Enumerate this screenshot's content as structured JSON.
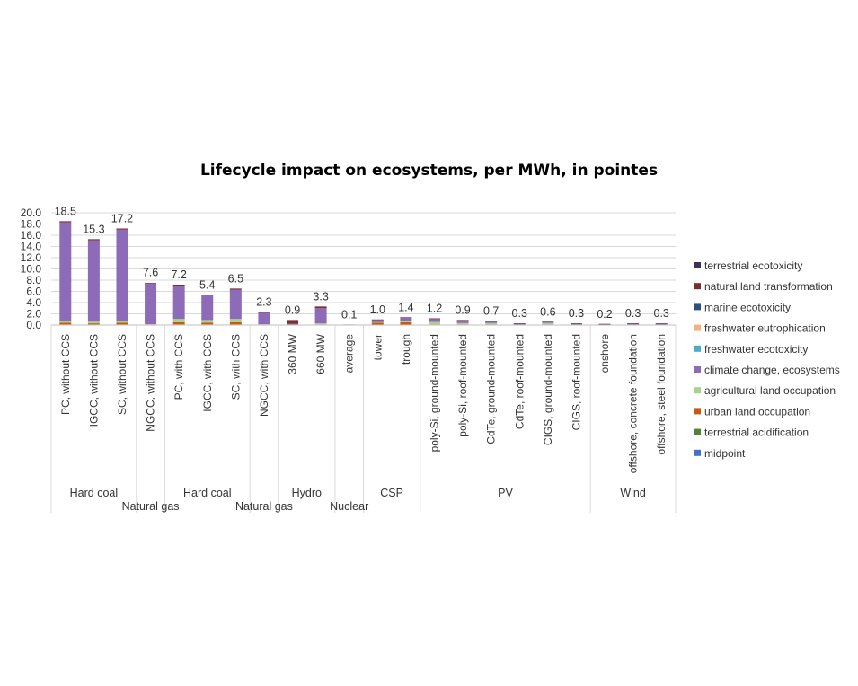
{
  "chart_data": {
    "type": "bar",
    "stacked": true,
    "title": "Lifecycle impact on ecosystems, per MWh, in pointes",
    "xlabel": "",
    "ylabel": "",
    "ylim": [
      0,
      20
    ],
    "yticks": [
      "0.0",
      "2.0",
      "4.0",
      "6.0",
      "8.0",
      "10.0",
      "12.0",
      "14.0",
      "16.0",
      "18.0",
      "20.0"
    ],
    "legend_position": "right",
    "categories": [
      "PC, without CCS",
      "IGCC, without CCS",
      "SC, without CCS",
      "NGCC, without CCS",
      "PC, with CCS",
      "IGCC, with CCS",
      "SC, with CCS",
      "NGCC, with CCS",
      "360 MW",
      "660 MW",
      "average",
      "tower",
      "trough",
      "poly-Si, ground-mounted",
      "poly-Si, roof-mounted",
      "CdTe, ground-mounted",
      "CdTe, roof-mounted",
      "CIGS, ground-mounted",
      "CIGS, roof-mounted",
      "onshore",
      "offshore, concrete foundation",
      "offshore, steel foundation"
    ],
    "totals": [
      18.5,
      15.3,
      17.2,
      7.6,
      7.2,
      5.4,
      6.5,
      2.3,
      0.9,
      3.3,
      0.1,
      1.0,
      1.4,
      1.2,
      0.9,
      0.7,
      0.3,
      0.6,
      0.3,
      0.2,
      0.3,
      0.3
    ],
    "total_labels": [
      "18.5",
      "15.3",
      "17.2",
      "7.6",
      "7.2",
      "5.4",
      "6.5",
      "2.3",
      "0.9",
      "3.3",
      "0.1",
      "1.0",
      "1.4",
      "1.2",
      "0.9",
      "0.7",
      "0.3",
      "0.6",
      "0.3",
      "0.2",
      "0.3",
      "0.3"
    ],
    "groups": [
      {
        "label": "Hard coal",
        "start": 0,
        "end": 2,
        "row": 1
      },
      {
        "label": "Natural gas",
        "start": 3,
        "end": 3,
        "row": 2
      },
      {
        "label": "Hard coal",
        "start": 4,
        "end": 6,
        "row": 1
      },
      {
        "label": "Natural gas",
        "start": 7,
        "end": 7,
        "row": 2
      },
      {
        "label": "Hydro",
        "start": 8,
        "end": 9,
        "row": 1
      },
      {
        "label": "Nuclear",
        "start": 10,
        "end": 10,
        "row": 2
      },
      {
        "label": "CSP",
        "start": 11,
        "end": 12,
        "row": 1
      },
      {
        "label": "PV",
        "start": 13,
        "end": 18,
        "row": 1
      },
      {
        "label": "Wind",
        "start": 19,
        "end": 21,
        "row": 1
      }
    ],
    "series": [
      {
        "name": "midpoint",
        "color": "#4472c4",
        "values": [
          0,
          0,
          0,
          0,
          0,
          0,
          0,
          0,
          0,
          0,
          0,
          0,
          0,
          0,
          0,
          0,
          0,
          0,
          0,
          0,
          0,
          0
        ]
      },
      {
        "name": "terrestrial acidification",
        "color": "#548235",
        "values": [
          0.1,
          0.1,
          0.1,
          0,
          0.1,
          0.1,
          0.1,
          0,
          0,
          0,
          0,
          0,
          0,
          0,
          0,
          0,
          0,
          0,
          0,
          0,
          0,
          0
        ]
      },
      {
        "name": "urban land occupation",
        "color": "#c55a11",
        "values": [
          0.3,
          0.2,
          0.3,
          0.05,
          0.4,
          0.3,
          0.4,
          0.05,
          0.05,
          0.1,
          0,
          0.4,
          0.5,
          0.05,
          0.05,
          0.05,
          0.02,
          0.05,
          0.02,
          0.02,
          0.02,
          0.02
        ]
      },
      {
        "name": "agricultural land occupation",
        "color": "#a9d18e",
        "values": [
          0.4,
          0.3,
          0.4,
          0.1,
          0.6,
          0.5,
          0.6,
          0.1,
          0,
          0.2,
          0,
          0.1,
          0.2,
          0.5,
          0.3,
          0.3,
          0.05,
          0.3,
          0.05,
          0.03,
          0.05,
          0.05
        ]
      },
      {
        "name": "climate change, ecosystems",
        "color": "#8e6bb8",
        "values": [
          17.5,
          14.5,
          16.2,
          7.3,
          5.9,
          4.4,
          5.2,
          2.1,
          0.15,
          2.7,
          0.1,
          0.45,
          0.6,
          0.6,
          0.5,
          0.3,
          0.2,
          0.2,
          0.2,
          0.13,
          0.2,
          0.2
        ]
      },
      {
        "name": "freshwater ecotoxicity",
        "color": "#4bacc6",
        "values": [
          0,
          0,
          0,
          0,
          0,
          0,
          0,
          0,
          0,
          0,
          0,
          0,
          0,
          0,
          0,
          0,
          0,
          0,
          0,
          0,
          0,
          0
        ]
      },
      {
        "name": "freshwater eutrophication",
        "color": "#f4b183",
        "values": [
          0,
          0,
          0,
          0,
          0,
          0,
          0,
          0,
          0,
          0,
          0,
          0,
          0,
          0,
          0,
          0,
          0,
          0,
          0,
          0,
          0,
          0
        ]
      },
      {
        "name": "marine ecotoxicity",
        "color": "#2f4f7f",
        "values": [
          0,
          0,
          0,
          0,
          0,
          0,
          0,
          0,
          0,
          0,
          0,
          0,
          0,
          0,
          0,
          0,
          0,
          0,
          0,
          0,
          0,
          0
        ]
      },
      {
        "name": "natural land transformation",
        "color": "#7b2c2c",
        "values": [
          0.2,
          0.2,
          0.2,
          0.05,
          0.2,
          0.1,
          0.2,
          0.05,
          0.7,
          0.3,
          0,
          0.05,
          0.1,
          0.05,
          0.05,
          0.05,
          0.03,
          0.05,
          0.03,
          0.02,
          0.03,
          0.03
        ]
      },
      {
        "name": "terrestrial ecotoxicity",
        "color": "#403151",
        "values": [
          0,
          0,
          0,
          0,
          0,
          0,
          0,
          0,
          0,
          0,
          0,
          0,
          0,
          0,
          0,
          0,
          0,
          0,
          0,
          0,
          0,
          0
        ]
      }
    ],
    "legend_order": [
      "terrestrial ecotoxicity",
      "natural land transformation",
      "marine ecotoxicity",
      "freshwater eutrophication",
      "freshwater ecotoxicity",
      "climate change, ecosystems",
      "agricultural land occupation",
      "urban land occupation",
      "terrestrial acidification",
      "midpoint"
    ]
  }
}
